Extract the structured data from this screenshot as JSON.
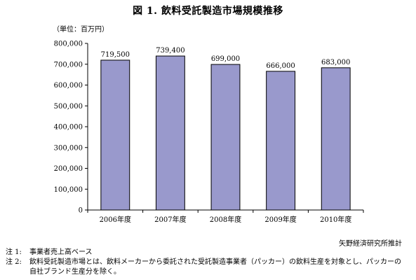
{
  "title": "図 1.  飲料受託製造市場規模推移",
  "unit": "（単位：百万円）",
  "chart_data": {
    "type": "bar",
    "categories": [
      "2006年度",
      "2007年度",
      "2008年度",
      "2009年度",
      "2010年度"
    ],
    "values": [
      719500,
      739400,
      699000,
      666000,
      683000
    ],
    "value_labels": [
      "719,500",
      "739,400",
      "699,000",
      "666,000",
      "683,000"
    ],
    "ylim": [
      0,
      800000
    ],
    "yticks": [
      0,
      100000,
      200000,
      300000,
      400000,
      500000,
      600000,
      700000,
      800000
    ],
    "ytick_labels": [
      "0",
      "100,000",
      "200,000",
      "300,000",
      "400,000",
      "500,000",
      "600,000",
      "700,000",
      "800,000"
    ],
    "bar_color": "#9999cc",
    "grid": false,
    "legend": "none"
  },
  "source": "矢野経済研究所推計",
  "notes": [
    {
      "label": "注 1:",
      "text": "事業者売上高ベース"
    },
    {
      "label": "注 2:",
      "text": "飲料受託製造市場とは、飲料メーカーから委託された受託製造事業者（パッカー）の飲料生産を対象とし、パッカーの",
      "cont": "自社ブランド生産分を除く。"
    }
  ]
}
